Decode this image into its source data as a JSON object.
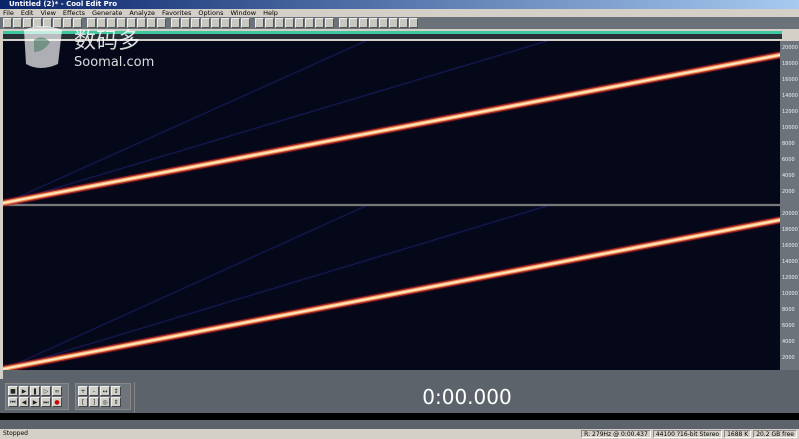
{
  "window": {
    "title": "Untitled (2)* - Cool Edit Pro"
  },
  "menu": [
    "File",
    "Edit",
    "View",
    "Effects",
    "Generate",
    "Analyze",
    "Favorites",
    "Options",
    "Window",
    "Help"
  ],
  "watermark": {
    "text_cn": "数码多",
    "text_en": "Soomal.com"
  },
  "freq_axis": {
    "top": [
      "20000",
      "18000",
      "16000",
      "14000",
      "12000",
      "10000",
      "8000",
      "6000",
      "4000",
      "2000"
    ],
    "bottom": [
      "20000",
      "18000",
      "16000",
      "14000",
      "12000",
      "10000",
      "8000",
      "6000",
      "4000",
      "2000"
    ]
  },
  "time_display": "0:00.000",
  "status": {
    "state": "Stopped",
    "cursor": "R: 279Hz @ 0:00.437",
    "format": "44100 ?16-bit Stereo",
    "size": "1688 K",
    "free": "20.2 GB free"
  },
  "colors": {
    "background": "#040818",
    "sweep": "#fff0c0",
    "accent": "#3ec8a0"
  }
}
